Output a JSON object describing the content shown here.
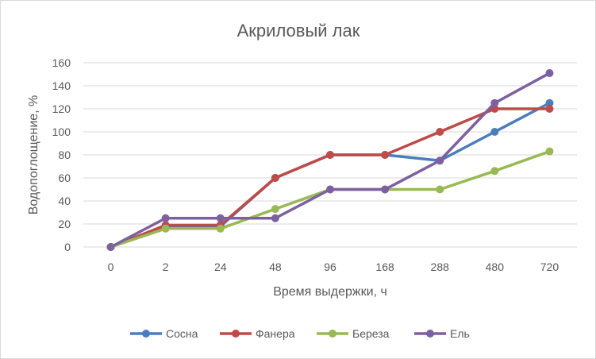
{
  "chart_data": {
    "type": "line",
    "title": "Акриловый лак",
    "xlabel": "Время выдержки, ч",
    "ylabel": "Водопоглощение, %",
    "categories": [
      "0",
      "2",
      "24",
      "48",
      "96",
      "168",
      "288",
      "480",
      "720"
    ],
    "ylim": [
      0,
      160
    ],
    "yticks": [
      0,
      20,
      40,
      60,
      80,
      100,
      120,
      140,
      160
    ],
    "grid": true,
    "legend_position": "bottom",
    "series": [
      {
        "name": "Сосна",
        "color": "#4a7ebb",
        "values": [
          0,
          18,
          18,
          60,
          80,
          80,
          75,
          100,
          125
        ]
      },
      {
        "name": "Фанера",
        "color": "#be4b48",
        "values": [
          0,
          19,
          19,
          60,
          80,
          80,
          100,
          120,
          120
        ]
      },
      {
        "name": "Береза",
        "color": "#98b954",
        "values": [
          0,
          16,
          16,
          33,
          50,
          50,
          50,
          66,
          83
        ]
      },
      {
        "name": "Ель",
        "color": "#7d60a0",
        "values": [
          0,
          25,
          25,
          25,
          50,
          50,
          75,
          125,
          151
        ]
      }
    ]
  }
}
